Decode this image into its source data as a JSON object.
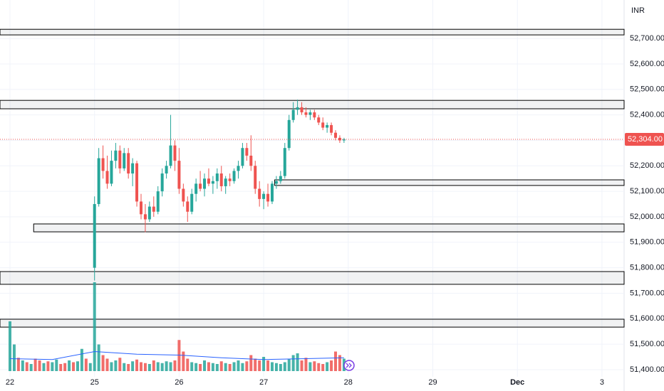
{
  "chart_data": {
    "type": "candlestick",
    "currency": "INR",
    "xlim": [
      -0.118,
      7.262
    ],
    "xticks": [
      {
        "value": 0,
        "label": "22"
      },
      {
        "value": 1,
        "label": "25"
      },
      {
        "value": 2,
        "label": "26"
      },
      {
        "value": 3,
        "label": "27"
      },
      {
        "value": 4,
        "label": "28"
      },
      {
        "value": 5,
        "label": "29"
      },
      {
        "value": 6,
        "label": "Dec"
      },
      {
        "value": 7,
        "label": "3"
      }
    ],
    "ylim": [
      51372,
      52851
    ],
    "yticks": [
      {
        "value": 51400,
        "label": "51,400.00"
      },
      {
        "value": 51500,
        "label": "51,500.00"
      },
      {
        "value": 51600,
        "label": "51,600.00"
      },
      {
        "value": 51700,
        "label": "51,700.00"
      },
      {
        "value": 51800,
        "label": "51,800.00"
      },
      {
        "value": 51900,
        "label": "51,900.00"
      },
      {
        "value": 52000,
        "label": "52,000.00"
      },
      {
        "value": 52100,
        "label": "52,100.00"
      },
      {
        "value": 52200,
        "label": "52,200.00"
      },
      {
        "value": 52300,
        "label": "52,300.00"
      },
      {
        "value": 52400,
        "label": "52,400.00"
      },
      {
        "value": 52500,
        "label": "52,500.00"
      },
      {
        "value": 52600,
        "label": "52,600.00"
      },
      {
        "value": 52700,
        "label": "52,700.00"
      }
    ],
    "grid": true,
    "up_color": "#26a69a",
    "down_color": "#ef5350",
    "last_price": 52304,
    "last_price_label": "52,304.00",
    "candles": {
      "x": [
        1.0,
        1.05,
        1.1,
        1.15,
        1.2,
        1.25,
        1.3,
        1.35,
        1.4,
        1.45,
        1.5,
        1.55,
        1.6,
        1.65,
        1.7,
        1.75,
        1.8,
        1.85,
        1.9,
        1.95,
        2.0,
        2.05,
        2.1,
        2.15,
        2.2,
        2.25,
        2.3,
        2.35,
        2.4,
        2.45,
        2.5,
        2.55,
        2.6,
        2.65,
        2.7,
        2.75,
        2.8,
        2.85,
        2.9,
        2.95,
        3.0,
        3.05,
        3.1,
        3.15,
        3.2,
        3.25,
        3.3,
        3.35,
        3.4,
        3.45,
        3.5,
        3.55,
        3.6,
        3.65,
        3.7,
        3.75,
        3.8,
        3.85,
        3.9,
        3.95
      ],
      "open": [
        51800,
        52050,
        52230,
        52180,
        52130,
        52220,
        52260,
        52190,
        52250,
        52170,
        52210,
        52060,
        52010,
        51990,
        52040,
        52020,
        52100,
        52170,
        52200,
        52280,
        52220,
        52110,
        52060,
        52020,
        52090,
        52130,
        52110,
        52150,
        52130,
        52140,
        52170,
        52120,
        52150,
        52140,
        52180,
        52200,
        52270,
        52240,
        52200,
        52110,
        52070,
        52090,
        52060,
        52130,
        52140,
        52160,
        52270,
        52380,
        52420,
        52430,
        52410,
        52400,
        52410,
        52390,
        52370,
        52350,
        52360,
        52330,
        52310,
        52300
      ],
      "high": [
        52080,
        52270,
        52280,
        52240,
        52260,
        52290,
        52280,
        52270,
        52270,
        52230,
        52220,
        52090,
        52050,
        52060,
        52080,
        52120,
        52190,
        52220,
        52400,
        52300,
        52270,
        52130,
        52080,
        52110,
        52150,
        52180,
        52170,
        52190,
        52160,
        52190,
        52200,
        52160,
        52170,
        52190,
        52220,
        52290,
        52290,
        52320,
        52220,
        52140,
        52100,
        52130,
        52140,
        52160,
        52180,
        52290,
        52400,
        52450,
        52460,
        52450,
        52430,
        52420,
        52420,
        52400,
        52390,
        52370,
        52370,
        52340,
        52320,
        52310
      ],
      "low": [
        51750,
        52040,
        52150,
        52110,
        52120,
        52190,
        52170,
        52180,
        52150,
        52120,
        52040,
        51990,
        51940,
        51980,
        52000,
        52010,
        52080,
        52150,
        52190,
        52180,
        52090,
        52040,
        51980,
        52010,
        52060,
        52100,
        52080,
        52120,
        52090,
        52110,
        52100,
        52090,
        52120,
        52130,
        52150,
        52190,
        52220,
        52180,
        52090,
        52040,
        52030,
        52040,
        52050,
        52110,
        52130,
        52150,
        52260,
        52370,
        52400,
        52400,
        52390,
        52380,
        52380,
        52360,
        52340,
        52330,
        52320,
        52300,
        52290,
        52290
      ],
      "close": [
        52050,
        52230,
        52180,
        52130,
        52220,
        52260,
        52190,
        52250,
        52170,
        52210,
        52060,
        52010,
        51990,
        52040,
        52020,
        52100,
        52170,
        52200,
        52280,
        52220,
        52110,
        52060,
        52020,
        52090,
        52130,
        52110,
        52150,
        52130,
        52140,
        52170,
        52120,
        52150,
        52140,
        52180,
        52200,
        52270,
        52240,
        52200,
        52110,
        52070,
        52090,
        52060,
        52130,
        52140,
        52160,
        52270,
        52380,
        52420,
        52430,
        52410,
        52400,
        52410,
        52390,
        52370,
        52350,
        52360,
        52330,
        52310,
        52300,
        52304
      ]
    },
    "zones": [
      {
        "low": 52714,
        "high": 52736,
        "start": -0.118
      },
      {
        "low": 52424,
        "high": 52457,
        "start": -0.118
      },
      {
        "low": 52123,
        "high": 52145,
        "start": 3.13
      },
      {
        "low": 51941,
        "high": 51972,
        "start": 0.28
      },
      {
        "low": 51735,
        "high": 51785,
        "start": -0.118
      },
      {
        "low": 51567,
        "high": 51598,
        "start": -0.118
      }
    ],
    "volume": {
      "ylim": [
        0,
        100
      ],
      "ma_color": "#2962ff",
      "x": [
        0,
        0.05,
        0.1,
        0.15,
        0.2,
        0.25,
        0.3,
        0.35,
        0.4,
        0.45,
        0.5,
        0.55,
        0.6,
        0.65,
        0.7,
        0.75,
        0.8,
        0.85,
        0.9,
        0.95,
        1.0,
        1.05,
        1.1,
        1.15,
        1.2,
        1.25,
        1.3,
        1.35,
        1.4,
        1.45,
        1.5,
        1.55,
        1.6,
        1.65,
        1.7,
        1.75,
        1.8,
        1.85,
        1.9,
        1.95,
        2.0,
        2.05,
        2.1,
        2.15,
        2.2,
        2.25,
        2.3,
        2.35,
        2.4,
        2.45,
        2.5,
        2.55,
        2.6,
        2.65,
        2.7,
        2.75,
        2.8,
        2.85,
        2.9,
        2.95,
        3.0,
        3.05,
        3.1,
        3.15,
        3.2,
        3.25,
        3.3,
        3.35,
        3.4,
        3.45,
        3.5,
        3.55,
        3.6,
        3.65,
        3.7,
        3.75,
        3.8,
        3.85,
        3.9,
        3.95
      ],
      "values": [
        56,
        30,
        15,
        12,
        10,
        8,
        14,
        12,
        9,
        11,
        10,
        13,
        8,
        9,
        12,
        10,
        11,
        25,
        14,
        9,
        100,
        30,
        18,
        14,
        10,
        12,
        15,
        9,
        8,
        11,
        13,
        10,
        9,
        8,
        12,
        10,
        9,
        11,
        10,
        12,
        35,
        22,
        14,
        10,
        9,
        8,
        12,
        10,
        9,
        8,
        11,
        9,
        8,
        10,
        12,
        9,
        11,
        18,
        14,
        12,
        16,
        12,
        10,
        9,
        8,
        10,
        14,
        18,
        20,
        12,
        15,
        10,
        11,
        9,
        8,
        10,
        12,
        22,
        18,
        14
      ],
      "up": [
        1,
        1,
        0,
        1,
        0,
        1,
        0,
        0,
        1,
        0,
        1,
        1,
        0,
        0,
        1,
        0,
        1,
        1,
        0,
        1,
        1,
        1,
        0,
        0,
        1,
        1,
        0,
        1,
        0,
        1,
        0,
        0,
        0,
        1,
        0,
        1,
        1,
        1,
        1,
        0,
        0,
        0,
        0,
        1,
        1,
        0,
        1,
        0,
        1,
        1,
        0,
        1,
        0,
        1,
        1,
        1,
        0,
        0,
        0,
        0,
        1,
        0,
        1,
        1,
        1,
        1,
        1,
        1,
        1,
        0,
        0,
        1,
        0,
        0,
        0,
        1,
        0,
        0,
        0,
        1
      ],
      "ma_x": [
        0,
        0.5,
        1,
        1.5,
        2,
        2.5,
        3,
        3.5,
        3.95
      ],
      "ma": [
        14,
        13,
        22,
        19,
        18,
        15,
        13,
        14,
        15
      ]
    }
  }
}
